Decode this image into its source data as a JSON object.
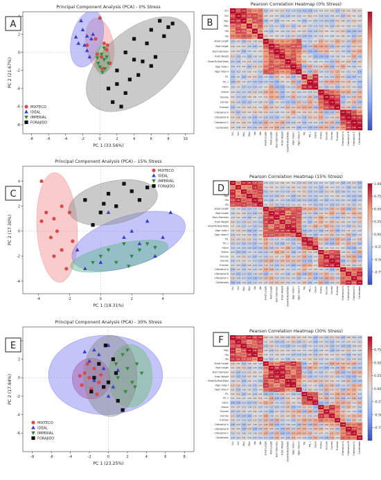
{
  "chart_data": [
    {
      "id": "A",
      "type": "scatter",
      "title": "Principal Component Analysis (PCA) - 0% Stress",
      "xlabel": "PC 1 (33.56%)",
      "ylabel": "PC 2 (21.67%)",
      "xlim": [
        -9,
        11
      ],
      "ylim": [
        -9,
        4.5
      ],
      "xticks": [
        -8,
        -6,
        -4,
        -2,
        0,
        2,
        4,
        6,
        8,
        10
      ],
      "yticks": [
        -8,
        -6,
        -4,
        -2,
        0,
        2,
        4
      ],
      "legend_position": "lower-left",
      "series": [
        {
          "name": "MIXTECO",
          "marker": "circle",
          "color": "#d94a4a",
          "points": [
            [
              -1.5,
              0.8
            ],
            [
              -0.5,
              1.5
            ],
            [
              0.2,
              -0.5
            ],
            [
              0.8,
              0.3
            ],
            [
              -0.3,
              -0.2
            ],
            [
              0.5,
              1.0
            ],
            [
              0,
              3.8
            ],
            [
              1.2,
              -1.2
            ],
            [
              0.3,
              -1.8
            ],
            [
              0.9,
              0.8
            ]
          ],
          "ellipse": {
            "cx": 0,
            "cy": 0.8,
            "rx": 1.6,
            "ry": 3.0,
            "angle": -10,
            "fill": "#f08f8f"
          }
        },
        {
          "name": "IDEAL",
          "marker": "triangle",
          "color": "#3a3fc4",
          "points": [
            [
              -2.0,
              2.5
            ],
            [
              -1.8,
              0.8
            ],
            [
              -1.0,
              1.5
            ],
            [
              -1.5,
              0.2
            ],
            [
              -2.5,
              1.0
            ],
            [
              -1.2,
              -0.5
            ],
            [
              -2.2,
              3.5
            ],
            [
              -0.8,
              2.0
            ],
            [
              -1.5,
              1.8
            ],
            [
              -2.8,
              1.7
            ]
          ],
          "ellipse": {
            "cx": -1.5,
            "cy": 1.5,
            "rx": 1.8,
            "ry": 3.2,
            "angle": 15,
            "fill": "#7a7ef0"
          }
        },
        {
          "name": "IMPERIAL",
          "marker": "triangle-down",
          "color": "#2f8a3c",
          "points": [
            [
              0.2,
              -0.2
            ],
            [
              0.5,
              -0.8
            ],
            [
              -0.2,
              -1.2
            ],
            [
              0.8,
              -0.5
            ],
            [
              0.0,
              -1.6
            ],
            [
              0.6,
              -1.8
            ],
            [
              -0.3,
              -0.6
            ],
            [
              1.0,
              -1.2
            ],
            [
              0.3,
              -2.2
            ],
            [
              0.5,
              0.5
            ]
          ],
          "ellipse": {
            "cx": 0.3,
            "cy": -0.8,
            "rx": 0.9,
            "ry": 1.6,
            "angle": 0,
            "fill": "#6fbf73"
          }
        },
        {
          "name": "FORAJIDO",
          "marker": "square",
          "color": "#111111",
          "points": [
            [
              1.0,
              -4.0
            ],
            [
              2.0,
              -2.0
            ],
            [
              3.0,
              0.0
            ],
            [
              4.0,
              1.5
            ],
            [
              5.0,
              -1.0
            ],
            [
              6.0,
              2.5
            ],
            [
              7.0,
              3.5
            ],
            [
              8.0,
              2.8
            ],
            [
              3.5,
              -3.0
            ],
            [
              2.5,
              -6.0
            ],
            [
              6.5,
              -0.5
            ],
            [
              5.5,
              1.0
            ],
            [
              4.5,
              -2.5
            ],
            [
              7.5,
              1.8
            ],
            [
              1.5,
              -5.5
            ],
            [
              3.0,
              -4.5
            ],
            [
              6.0,
              -1.5
            ],
            [
              4.0,
              -0.8
            ],
            [
              8.5,
              3.2
            ],
            [
              2.0,
              -3.5
            ]
          ],
          "ellipse": {
            "cx": 4.5,
            "cy": -1.3,
            "rx": 7.2,
            "ry": 3.8,
            "angle": -40,
            "fill": "#8a8a8a"
          }
        }
      ]
    },
    {
      "id": "B",
      "type": "heatmap",
      "title": "Pearson Correlation Heatmap (0% Stress)",
      "variables": [
        "Sn1",
        "Sn2",
        "Mg1",
        "Mg2",
        "Ota",
        "Ute",
        "Shoot Length",
        "Root Length",
        "Stem Diameter",
        "Fresh Weight",
        "Shoot-To-Root Ratio",
        "Vigor Index I",
        "Vigor Index II",
        "TFL",
        "TFL 1",
        "Glycin",
        "Proline",
        "Glucose",
        "Sucrose",
        "Fructose",
        "Chlorophyll A",
        "Chlorophyll B",
        "Chlorophyll C",
        "Carotenoids"
      ],
      "colorbar": {
        "min": -1,
        "max": 1,
        "ticks": []
      },
      "seed": 11
    },
    {
      "id": "C",
      "type": "scatter",
      "title": "Principal Component Analysis (PCA) - 15% Stress",
      "xlabel": "PC 1 (19.31%)",
      "ylabel": "PC 2 (17.30%)",
      "xlim": [
        -5,
        6
      ],
      "ylim": [
        -5,
        5.2
      ],
      "xticks": [
        -4,
        -2,
        0,
        2,
        4
      ],
      "yticks": [
        -4,
        -2,
        0,
        2,
        4
      ],
      "legend_position": "top-right",
      "series": [
        {
          "name": "MIXTECO",
          "marker": "circle",
          "color": "#d94a4a",
          "points": [
            [
              -3.8,
              4.0
            ],
            [
              -3.5,
              1.5
            ],
            [
              -3.0,
              1.0
            ],
            [
              -2.5,
              2.0
            ],
            [
              -3.8,
              0.8
            ],
            [
              -2.8,
              0.0
            ],
            [
              -3.2,
              -0.5
            ],
            [
              -2.0,
              1.5
            ],
            [
              -2.5,
              -1.5
            ],
            [
              -3.0,
              -2.0
            ],
            [
              -2.2,
              -3.0
            ],
            [
              -1.8,
              -0.8
            ]
          ],
          "ellipse": {
            "cx": -2.8,
            "cy": 0.3,
            "rx": 1.3,
            "ry": 4.4,
            "angle": -3,
            "fill": "#f08f8f"
          }
        },
        {
          "name": "IDEAL",
          "marker": "triangle",
          "color": "#3a3fc4",
          "points": [
            [
              -1.5,
              -1.5
            ],
            [
              -0.5,
              0.5
            ],
            [
              0.5,
              1.5
            ],
            [
              1.5,
              -0.5
            ],
            [
              2.5,
              -1.0
            ],
            [
              3.0,
              0.8
            ],
            [
              4.0,
              -0.5
            ],
            [
              4.5,
              1.5
            ],
            [
              -1.0,
              -3.0
            ],
            [
              0.0,
              -2.5
            ],
            [
              2.0,
              0.0
            ],
            [
              3.5,
              -2.0
            ]
          ],
          "ellipse": {
            "cx": 1.8,
            "cy": -0.8,
            "rx": 3.8,
            "ry": 2.0,
            "angle": -18,
            "fill": "#7a7ef0"
          }
        },
        {
          "name": "IMPERIAL",
          "marker": "triangle-down",
          "color": "#2f8a3c",
          "points": [
            [
              0.0,
              -2.0
            ],
            [
              0.5,
              -1.5
            ],
            [
              1.0,
              -2.5
            ],
            [
              1.5,
              -1.0
            ],
            [
              2.0,
              -2.0
            ],
            [
              2.5,
              -1.5
            ],
            [
              3.0,
              -1.0
            ],
            [
              -0.5,
              -2.5
            ],
            [
              1.8,
              -2.8
            ],
            [
              3.5,
              -1.3
            ]
          ],
          "ellipse": {
            "cx": 1.2,
            "cy": -2.0,
            "rx": 3.2,
            "ry": 1.0,
            "angle": -12,
            "fill": "#5fb58a"
          }
        },
        {
          "name": "FORAJIDO",
          "marker": "square",
          "color": "#111111",
          "points": [
            [
              -1.0,
              2.5
            ],
            [
              0.0,
              1.5
            ],
            [
              0.5,
              3.0
            ],
            [
              1.0,
              2.0
            ],
            [
              2.0,
              3.2
            ],
            [
              2.5,
              2.5
            ],
            [
              3.0,
              3.5
            ],
            [
              1.5,
              3.8
            ],
            [
              -0.5,
              0.5
            ],
            [
              0.2,
              2.2
            ]
          ],
          "ellipse": {
            "cx": 0.8,
            "cy": 2.3,
            "rx": 2.9,
            "ry": 1.7,
            "angle": -12,
            "fill": "#8a8a8a"
          }
        }
      ]
    },
    {
      "id": "D",
      "type": "heatmap",
      "title": "Pearson Correlation Heatmap (15% Stress)",
      "variables": [
        "Sn1",
        "Sn2",
        "Mg1",
        "Mg2",
        "Ota",
        "Ute",
        "Shoot Length",
        "Root Length",
        "Stem Diameter",
        "Fresh Weight",
        "Shoot-To-Root Ratio",
        "Vigor Index I",
        "Vigor Index II",
        "TFL",
        "TFL 1",
        "Glycin",
        "Proline",
        "Glucose",
        "Sucrose",
        "Fructose",
        "Chlorophyll A",
        "Chlorophyll B",
        "Chlorophyll C",
        "Carotenoids"
      ],
      "colorbar": {
        "min": -1,
        "max": 1,
        "ticks": [
          "1.00",
          "0.75",
          "0.50",
          "0.25",
          "0.00",
          "-0.25",
          "-0.50",
          "-0.75"
        ]
      },
      "seed": 23
    },
    {
      "id": "E",
      "type": "scatter",
      "title": "Principal Component Analysis (PCA) - 30% Stress",
      "xlabel": "PC 1 (23.25%)",
      "ylabel": "PC 2 (17.84%)",
      "xlim": [
        -9,
        9
      ],
      "ylim": [
        -8,
        5.5
      ],
      "xticks": [
        -8,
        -6,
        -4,
        -2,
        0,
        2,
        4,
        6,
        8
      ],
      "yticks": [
        -6,
        -4,
        -2,
        0,
        2,
        4
      ],
      "legend_position": "lower-left",
      "series": [
        {
          "name": "MIXTECO",
          "marker": "circle",
          "color": "#d94a4a",
          "points": [
            [
              -2.5,
              0.5
            ],
            [
              -2.0,
              0.0
            ],
            [
              -1.5,
              1.0
            ],
            [
              -1.0,
              -0.5
            ],
            [
              -2.8,
              -0.8
            ],
            [
              -1.8,
              -1.2
            ],
            [
              -0.8,
              0.3
            ],
            [
              -2.2,
              1.5
            ],
            [
              -1.2,
              -1.8
            ],
            [
              -3.0,
              0.2
            ]
          ],
          "ellipse": {
            "cx": -1.8,
            "cy": -0.1,
            "rx": 2.0,
            "ry": 2.2,
            "angle": 0,
            "fill": "#c0306a"
          }
        },
        {
          "name": "IDEAL",
          "marker": "triangle",
          "color": "#3a3fc4",
          "points": [
            [
              -2.0,
              1.8
            ],
            [
              -1.0,
              2.5
            ],
            [
              0.0,
              3.5
            ],
            [
              -0.5,
              1.0
            ],
            [
              0.5,
              -1.0
            ],
            [
              -1.5,
              -0.3
            ],
            [
              1.0,
              0.8
            ],
            [
              -2.5,
              2.8
            ],
            [
              0.0,
              -2.0
            ],
            [
              -1.5,
              3.0
            ]
          ],
          "ellipse": {
            "cx": -0.3,
            "cy": 0.3,
            "rx": 6.0,
            "ry": 4.3,
            "angle": 0,
            "fill": "#7a7ef0"
          }
        },
        {
          "name": "IMPERIAL",
          "marker": "triangle-down",
          "color": "#2f8a3c",
          "points": [
            [
              1.5,
              2.5
            ],
            [
              2.0,
              1.0
            ],
            [
              1.0,
              0.0
            ],
            [
              2.5,
              -0.5
            ],
            [
              3.0,
              1.5
            ],
            [
              2.0,
              3.0
            ],
            [
              1.8,
              -1.5
            ],
            [
              3.5,
              0.5
            ],
            [
              0.8,
              1.5
            ],
            [
              2.8,
              -1.0
            ]
          ],
          "ellipse": {
            "cx": 2.3,
            "cy": 0.2,
            "rx": 2.3,
            "ry": 3.4,
            "angle": 0,
            "fill": "#6fbf73"
          }
        },
        {
          "name": "FORAJIDO",
          "marker": "square",
          "color": "#111111",
          "points": [
            [
              -1.5,
              0.0
            ],
            [
              -0.5,
              -1.0
            ],
            [
              0.5,
              2.0
            ],
            [
              1.0,
              -2.5
            ],
            [
              -1.0,
              1.5
            ],
            [
              0.0,
              -0.5
            ],
            [
              1.5,
              -3.5
            ],
            [
              -0.3,
              3.5
            ],
            [
              0.8,
              0.5
            ],
            [
              -1.8,
              -1.5
            ]
          ],
          "ellipse": {
            "cx": 0.2,
            "cy": 0.2,
            "rx": 2.8,
            "ry": 4.4,
            "angle": 0,
            "fill": "#8a8a8a"
          }
        }
      ]
    },
    {
      "id": "F",
      "type": "heatmap",
      "title": "Pearson Correlation Heatmap (30% Stress)",
      "variables": [
        "Sn1",
        "Sn2",
        "Mg1",
        "Mg2",
        "Ota",
        "Ute",
        "Shoot Length",
        "Root Length",
        "Stem Diameter",
        "Fresh Weight",
        "Shoot-To-Root Ratio",
        "Vigor Index I",
        "Vigor Index II",
        "TFL",
        "TFL 1",
        "Glycin",
        "Proline",
        "Glucose",
        "Sucrose",
        "Fructose",
        "Chlorophyll A",
        "Chlorophyll B",
        "Chlorophyll C",
        "Carotenoids"
      ],
      "colorbar": {
        "min": -1,
        "max": 1,
        "ticks": [
          "0.75",
          "0.50",
          "0.25",
          "0.00",
          "-0.25",
          "-0.50",
          "-0.75"
        ]
      },
      "seed": 37
    }
  ]
}
